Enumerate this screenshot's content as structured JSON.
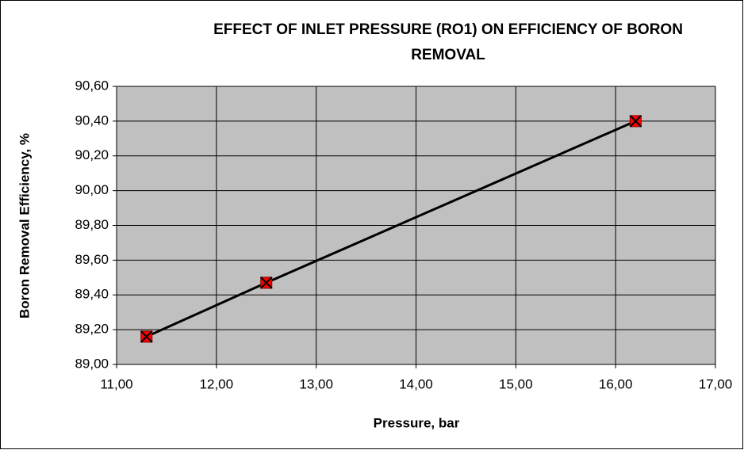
{
  "chart_data": {
    "type": "line",
    "title": "EFFECT OF INLET PRESSURE (RO1) ON EFFICIENCY OF BORON REMOVAL",
    "xlabel": "Pressure, bar",
    "ylabel": "Boron Removal Efficiency, %",
    "x": [
      11.3,
      12.5,
      16.2
    ],
    "series": [
      {
        "color": "#000000",
        "marker_color": "#ff0000",
        "values": [
          89.16,
          89.47,
          90.4
        ]
      }
    ],
    "xlim": [
      11,
      17
    ],
    "xticks": [
      {
        "value": 11,
        "label": "11,00"
      },
      {
        "value": 12,
        "label": "12,00"
      },
      {
        "value": 13,
        "label": "13,00"
      },
      {
        "value": 14,
        "label": "14,00"
      },
      {
        "value": 15,
        "label": "15,00"
      },
      {
        "value": 16,
        "label": "16,00"
      },
      {
        "value": 17,
        "label": "17,00"
      }
    ],
    "ylim": [
      89,
      90.6
    ],
    "yticks": [
      {
        "value": 89,
        "label": "89,00"
      },
      {
        "value": 89.2,
        "label": "89,20"
      },
      {
        "value": 89.4,
        "label": "89,40"
      },
      {
        "value": 89.6,
        "label": "89,60"
      },
      {
        "value": 89.8,
        "label": "89,80"
      },
      {
        "value": 90,
        "label": "90,00"
      },
      {
        "value": 90.2,
        "label": "90,20"
      },
      {
        "value": 90.4,
        "label": "90,40"
      },
      {
        "value": 90.6,
        "label": "90,60"
      }
    ],
    "grid": true,
    "plot_background": "#c0c0c0"
  }
}
